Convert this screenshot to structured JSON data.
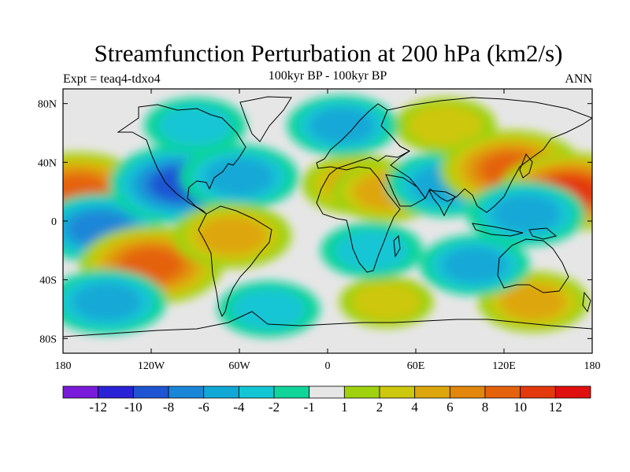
{
  "chart_data": {
    "type": "heatmap",
    "title": "Streamfunction Perturbation at 200 hPa (km2/s)",
    "subtitle": "100kyr BP - 100kyr BP",
    "left_string": "Expt = teaq4-tdxo4",
    "right_string": "ANN",
    "x_axis": {
      "range": [
        -180,
        180
      ],
      "ticks": [
        -180,
        -120,
        -60,
        0,
        60,
        120,
        180
      ],
      "tick_labels": [
        "180",
        "120W",
        "60W",
        "0",
        "60E",
        "120E",
        "180"
      ]
    },
    "y_axis": {
      "range": [
        -90,
        90
      ],
      "ticks": [
        80,
        40,
        0,
        -40,
        -80
      ],
      "tick_labels": [
        "80N",
        "40N",
        "0",
        "40S",
        "80S"
      ]
    },
    "colorbar": {
      "levels": [
        -12,
        -10,
        -8,
        -6,
        -4,
        -2,
        -1,
        1,
        2,
        4,
        6,
        8,
        10,
        12
      ],
      "labels": [
        "-12",
        "-10",
        "-8",
        "-6",
        "-4",
        "-2",
        "-1",
        "1",
        "2",
        "4",
        "6",
        "8",
        "10",
        "12"
      ],
      "colors": [
        "#7a1bdc",
        "#2a22d6",
        "#1f55d2",
        "#1a86d8",
        "#12a8d6",
        "#12c6d4",
        "#10d49a",
        "#e6e6e6",
        "#9fd10f",
        "#cdc70e",
        "#dea60d",
        "#e2860c",
        "#e5620c",
        "#e4380d",
        "#e0100f"
      ]
    },
    "anomaly_centers": [
      {
        "lon": -170,
        "lat": 20,
        "value": 9
      },
      {
        "lon": -155,
        "lat": -5,
        "value": -6
      },
      {
        "lon": -120,
        "lat": -30,
        "value": 8
      },
      {
        "lon": -150,
        "lat": -55,
        "value": -5
      },
      {
        "lon": -100,
        "lat": 25,
        "value": -8
      },
      {
        "lon": -60,
        "lat": 30,
        "value": -5
      },
      {
        "lon": -90,
        "lat": 65,
        "value": -3
      },
      {
        "lon": -65,
        "lat": -10,
        "value": 5
      },
      {
        "lon": -40,
        "lat": -60,
        "value": -3
      },
      {
        "lon": 20,
        "lat": 25,
        "value": 4
      },
      {
        "lon": 40,
        "lat": 20,
        "value": 4
      },
      {
        "lon": 80,
        "lat": 25,
        "value": -5
      },
      {
        "lon": 80,
        "lat": 65,
        "value": 3
      },
      {
        "lon": 125,
        "lat": 35,
        "value": 8
      },
      {
        "lon": 165,
        "lat": 20,
        "value": 10
      },
      {
        "lon": 135,
        "lat": 5,
        "value": -5
      },
      {
        "lon": 140,
        "lat": -55,
        "value": 4
      },
      {
        "lon": 100,
        "lat": -30,
        "value": -4
      },
      {
        "lon": 40,
        "lat": -55,
        "value": 2
      },
      {
        "lon": 30,
        "lat": -20,
        "value": -3
      },
      {
        "lon": 10,
        "lat": 65,
        "value": -4
      }
    ]
  }
}
